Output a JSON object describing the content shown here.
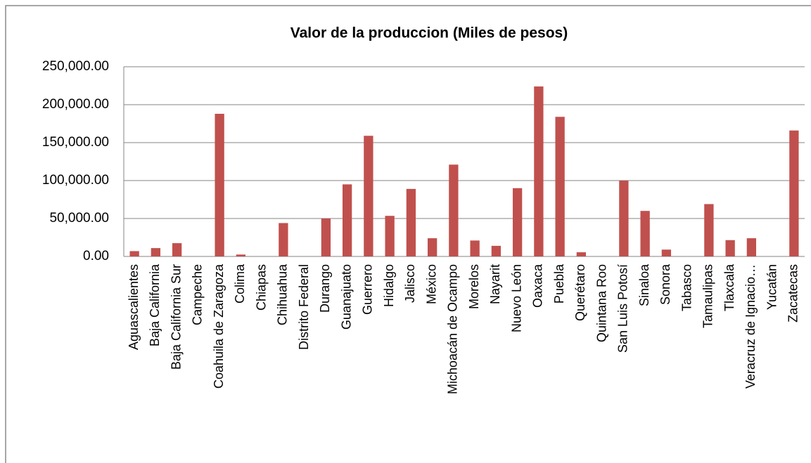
{
  "chart_data": {
    "type": "bar",
    "title": "Valor de la produccion (Miles de pesos)",
    "categories": [
      "Aguascalientes",
      "Baja California",
      "Baja California Sur",
      "Campeche",
      "Coahuila de Zaragoza",
      "Colima",
      "Chiapas",
      "Chihuahua",
      "Distrito Federal",
      "Durango",
      "Guanajuato",
      "Guerrero",
      "Hidalgo",
      "Jalisco",
      "México",
      "Michoacán de Ocampo",
      "Morelos",
      "Nayarit",
      "Nuevo León",
      "Oaxaca",
      "Puebla",
      "Querétaro",
      "Quintana Roo",
      "San Luis Potosí",
      "Sinaloa",
      "Sonora",
      "Tabasco",
      "Tamaulipas",
      "Tlaxcala",
      "Veracruz de Ignacio…",
      "Yucatán",
      "Zacatecas"
    ],
    "values": [
      7000,
      11000,
      17500,
      0,
      188000,
      2500,
      0,
      44000,
      0,
      50000,
      95000,
      159000,
      53500,
      89000,
      24000,
      121000,
      21000,
      14000,
      90000,
      224000,
      184000,
      5500,
      0,
      100000,
      60000,
      9000,
      0,
      69000,
      21500,
      24000,
      0,
      166000
    ],
    "color": "#c0504d",
    "ylim": [
      0,
      250000
    ],
    "yticks": [
      {
        "value": 0,
        "label": "0.00"
      },
      {
        "value": 50000,
        "label": "50,000.00"
      },
      {
        "value": 100000,
        "label": "100,000.00"
      },
      {
        "value": 150000,
        "label": "150,000.00"
      },
      {
        "value": 200000,
        "label": "200,000.00"
      },
      {
        "value": 250000,
        "label": "250,000.00"
      }
    ],
    "grid": true
  }
}
